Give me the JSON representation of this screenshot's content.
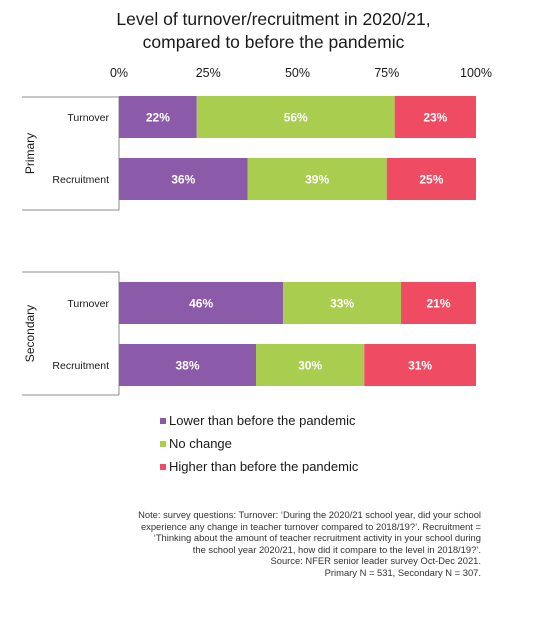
{
  "chart_data": {
    "type": "bar",
    "orientation": "horizontal",
    "stacked": true,
    "percent_stacked": true,
    "title": "Level of turnover/recruitment in 2020/21, compared to before the pandemic",
    "title_lines": [
      "Level of turnover/recruitment in 2020/21,",
      "compared to before the pandemic"
    ],
    "xlim": [
      0,
      100
    ],
    "x_ticks": [
      0,
      25,
      50,
      75,
      100
    ],
    "x_tick_labels": [
      "0%",
      "25%",
      "50%",
      "75%",
      "100%"
    ],
    "x_axis_position": "top",
    "grid": false,
    "legend_position": "bottom",
    "groups": [
      {
        "name": "Primary",
        "categories": [
          "Turnover",
          "Recruitment"
        ]
      },
      {
        "name": "Secondary",
        "categories": [
          "Turnover",
          "Recruitment"
        ]
      }
    ],
    "series": [
      {
        "name": "Lower than before the pandemic",
        "color": "#8b5ba9",
        "values": [
          22,
          36,
          46,
          38
        ],
        "labels": [
          "22%",
          "36%",
          "46%",
          "38%"
        ]
      },
      {
        "name": "No change",
        "color": "#a8cd4f",
        "values": [
          56,
          39,
          33,
          30
        ],
        "labels": [
          "56%",
          "39%",
          "33%",
          "30%"
        ]
      },
      {
        "name": "Higher than before the pandemic",
        "color": "#ef4b63",
        "values": [
          23,
          25,
          21,
          31
        ],
        "labels": [
          "23%",
          "25%",
          "21%",
          "31%"
        ]
      }
    ]
  },
  "notes": [
    "Note: survey questions: Turnover: ‘During the 2020/21 school year, did your school",
    "experience any change in teacher turnover compared to 2018/19?’. Recruitment =",
    "‘Thinking about the amount of teacher recruitment activity in your school during",
    "the school year 2020/21, how did it compare to the level in 2018/19?’.",
    "Source: NFER senior leader survey Oct-Dec 2021.",
    "Primary N = 531, Secondary N = 307."
  ]
}
